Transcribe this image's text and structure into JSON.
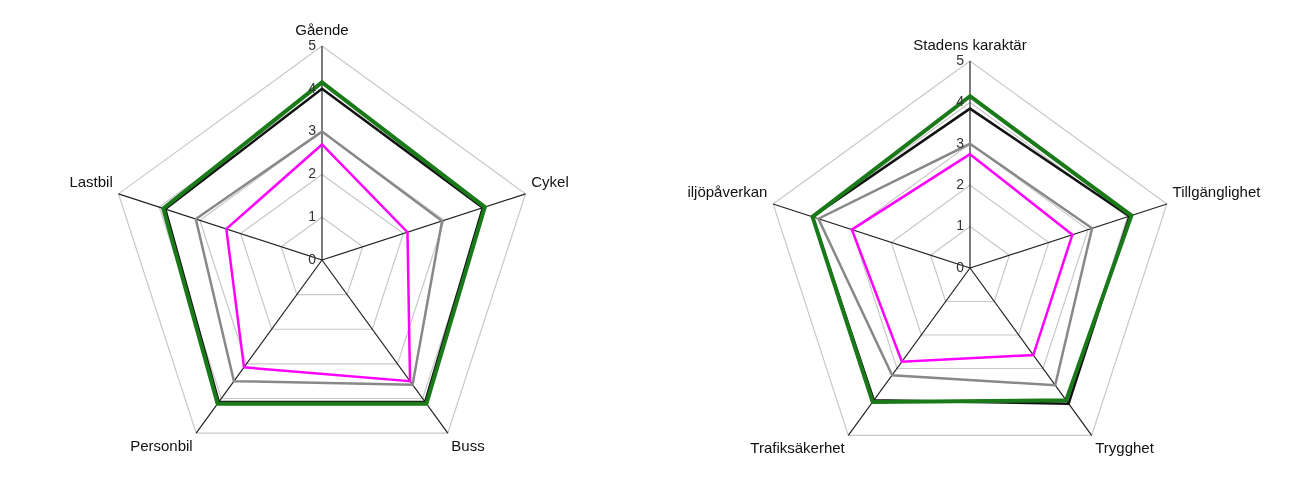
{
  "chart_data": [
    {
      "type": "radar",
      "categories": [
        "Gående",
        "Cykel",
        "Buss",
        "Personbil",
        "Lastbil"
      ],
      "ylim": [
        0,
        5
      ],
      "yticks": [
        0,
        1,
        2,
        3,
        4,
        5
      ],
      "grid": true,
      "series": [
        {
          "color": "#1a7a1a",
          "values": [
            4.15,
            4.0,
            4.15,
            4.15,
            3.9
          ]
        },
        {
          "color": "#111111",
          "values": [
            4.0,
            3.95,
            4.1,
            4.1,
            3.85
          ]
        },
        {
          "color": "#888888",
          "values": [
            3.0,
            2.95,
            3.6,
            3.5,
            3.1
          ]
        },
        {
          "color": "#ff00ff",
          "values": [
            2.7,
            2.1,
            3.5,
            3.1,
            2.35
          ]
        }
      ]
    },
    {
      "type": "radar",
      "categories": [
        "Stadens karaktär",
        "Tillgänglighet",
        "Trygghet",
        "Trafiksäkerhet",
        "iljöpåverkan"
      ],
      "ylim": [
        0,
        5
      ],
      "yticks": [
        0,
        1,
        2,
        3,
        4,
        5
      ],
      "grid": true,
      "series": [
        {
          "color": "#1a7a1a",
          "values": [
            4.15,
            4.1,
            3.95,
            4.0,
            4.0
          ]
        },
        {
          "color": "#111111",
          "values": [
            3.85,
            4.05,
            4.05,
            3.95,
            4.0
          ]
        },
        {
          "color": "#888888",
          "values": [
            3.0,
            3.1,
            3.5,
            3.2,
            3.85
          ]
        },
        {
          "color": "#ff00ff",
          "values": [
            2.75,
            2.6,
            2.6,
            2.8,
            3.0
          ]
        }
      ]
    }
  ]
}
